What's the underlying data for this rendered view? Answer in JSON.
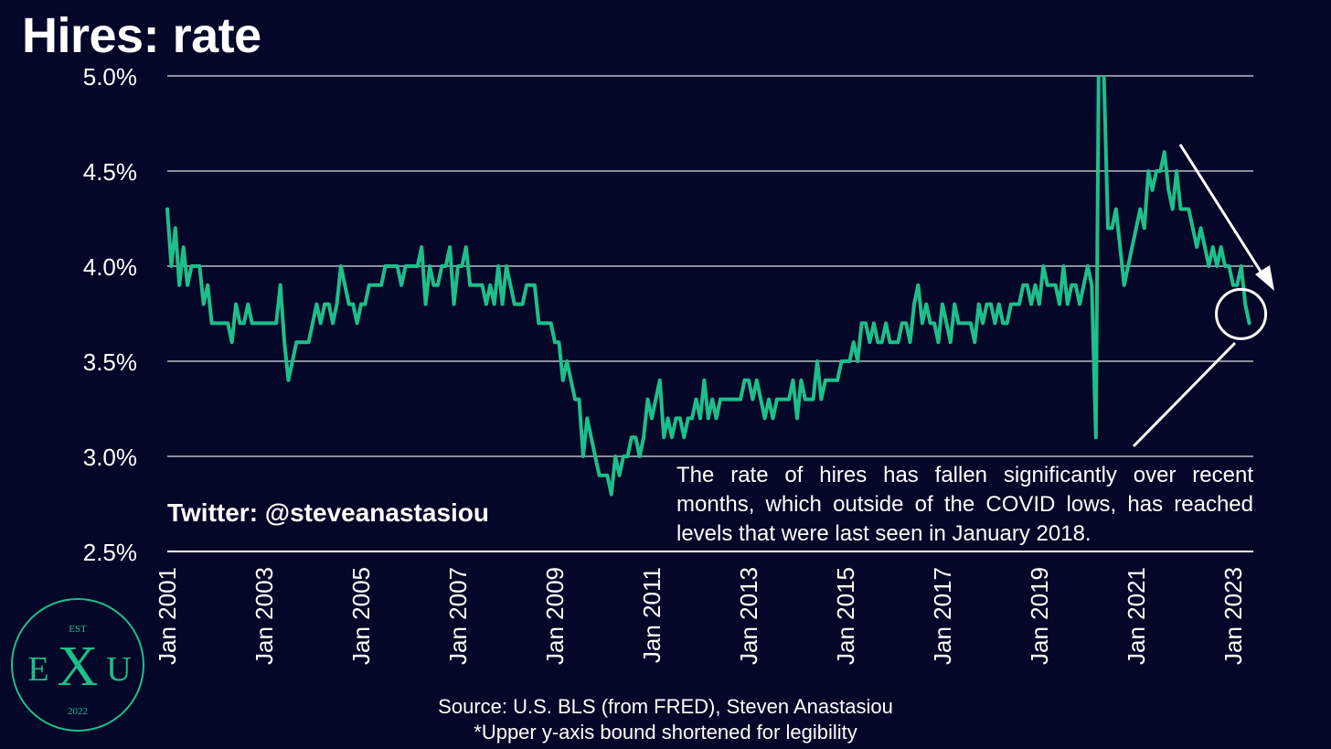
{
  "title": "Hires: rate",
  "twitter": "Twitter: @steveanastasiou",
  "annotation": "The rate of hires has fallen significantly over recent months, which outside of the COVID lows, has reached levels that were last seen in January 2018.",
  "source_line": "Source: U.S. BLS (from FRED), Steven Anastasiou",
  "note_line": "*Upper y-axis bound shortened for legibility",
  "logo": {
    "top": "EST",
    "left": "E",
    "center": "X",
    "right": "U",
    "bottom": "2022"
  },
  "colors": {
    "background": "#040728",
    "line": "#1dbf8a",
    "grid": "#8c8f9e",
    "text": "#ffffff",
    "logo": "#1dbf8a"
  },
  "chart_data": {
    "type": "line",
    "title": "Hires: rate",
    "xlabel": "",
    "ylabel": "",
    "ylim": [
      2.5,
      5.0
    ],
    "y_ticks": [
      "2.5%",
      "3.0%",
      "3.5%",
      "4.0%",
      "4.5%",
      "5.0%"
    ],
    "x_ticks": [
      "Jan 2001",
      "Jan 2003",
      "Jan 2005",
      "Jan 2007",
      "Jan 2009",
      "Jan 2011",
      "Jan 2013",
      "Jan 2015",
      "Jan 2017",
      "Jan 2019",
      "Jan 2021",
      "Jan 2023"
    ],
    "grid": true,
    "x_start": "2001-01",
    "x_end": "2023-06",
    "frequency": "monthly",
    "series": [
      {
        "values": [
          4.3,
          4.0,
          4.2,
          3.9,
          4.1,
          3.9,
          4.0,
          4.0,
          4.0,
          3.8,
          3.9,
          3.7,
          3.7,
          3.7,
          3.7,
          3.7,
          3.6,
          3.8,
          3.7,
          3.7,
          3.8,
          3.7,
          3.7,
          3.7,
          3.7,
          3.7,
          3.7,
          3.7,
          3.9,
          3.6,
          3.4,
          3.5,
          3.6,
          3.6,
          3.6,
          3.6,
          3.7,
          3.8,
          3.7,
          3.8,
          3.8,
          3.7,
          3.8,
          4.0,
          3.9,
          3.8,
          3.8,
          3.7,
          3.8,
          3.8,
          3.9,
          3.9,
          3.9,
          3.9,
          4.0,
          4.0,
          4.0,
          4.0,
          3.9,
          4.0,
          4.0,
          4.0,
          4.0,
          4.1,
          3.8,
          4.0,
          3.9,
          3.9,
          4.0,
          4.0,
          4.1,
          3.8,
          4.0,
          4.0,
          4.1,
          3.9,
          3.9,
          3.9,
          3.9,
          3.8,
          3.9,
          3.8,
          4.0,
          3.8,
          4.0,
          3.9,
          3.8,
          3.8,
          3.8,
          3.9,
          3.9,
          3.9,
          3.7,
          3.7,
          3.7,
          3.7,
          3.6,
          3.6,
          3.4,
          3.5,
          3.4,
          3.3,
          3.3,
          3.0,
          3.2,
          3.1,
          3.0,
          2.9,
          2.9,
          2.9,
          2.8,
          3.0,
          2.9,
          3.0,
          3.0,
          3.1,
          3.1,
          3.0,
          3.1,
          3.3,
          3.2,
          3.3,
          3.4,
          3.1,
          3.2,
          3.1,
          3.2,
          3.2,
          3.1,
          3.2,
          3.2,
          3.3,
          3.2,
          3.4,
          3.2,
          3.3,
          3.2,
          3.3,
          3.3,
          3.3,
          3.3,
          3.3,
          3.3,
          3.4,
          3.4,
          3.3,
          3.4,
          3.3,
          3.2,
          3.3,
          3.2,
          3.3,
          3.3,
          3.3,
          3.3,
          3.4,
          3.2,
          3.4,
          3.3,
          3.3,
          3.3,
          3.5,
          3.3,
          3.4,
          3.4,
          3.4,
          3.4,
          3.5,
          3.5,
          3.5,
          3.6,
          3.5,
          3.7,
          3.7,
          3.6,
          3.7,
          3.6,
          3.6,
          3.7,
          3.6,
          3.6,
          3.6,
          3.7,
          3.7,
          3.6,
          3.8,
          3.9,
          3.7,
          3.8,
          3.7,
          3.7,
          3.6,
          3.8,
          3.7,
          3.6,
          3.8,
          3.7,
          3.7,
          3.7,
          3.7,
          3.6,
          3.8,
          3.7,
          3.8,
          3.8,
          3.7,
          3.8,
          3.7,
          3.7,
          3.8,
          3.8,
          3.8,
          3.9,
          3.9,
          3.8,
          3.9,
          3.8,
          4.0,
          3.9,
          3.9,
          3.9,
          3.8,
          4.0,
          3.8,
          3.9,
          3.9,
          3.8,
          3.9,
          4.0,
          3.9,
          3.1,
          5.9,
          5.0,
          4.2,
          4.2,
          4.3,
          4.1,
          3.9,
          4.0,
          4.1,
          4.2,
          4.3,
          4.2,
          4.5,
          4.4,
          4.5,
          4.5,
          4.6,
          4.4,
          4.3,
          4.5,
          4.3,
          4.3,
          4.3,
          4.2,
          4.1,
          4.2,
          4.1,
          4.0,
          4.1,
          4.0,
          4.1,
          4.0,
          4.0,
          3.9,
          3.9,
          4.0,
          3.8,
          3.7
        ]
      }
    ],
    "annotations": [
      "The rate of hires has fallen significantly over recent months, which outside of the COVID lows, has reached levels that were last seen in January 2018."
    ],
    "notes": [
      "*Upper y-axis bound shortened for legibility"
    ]
  }
}
